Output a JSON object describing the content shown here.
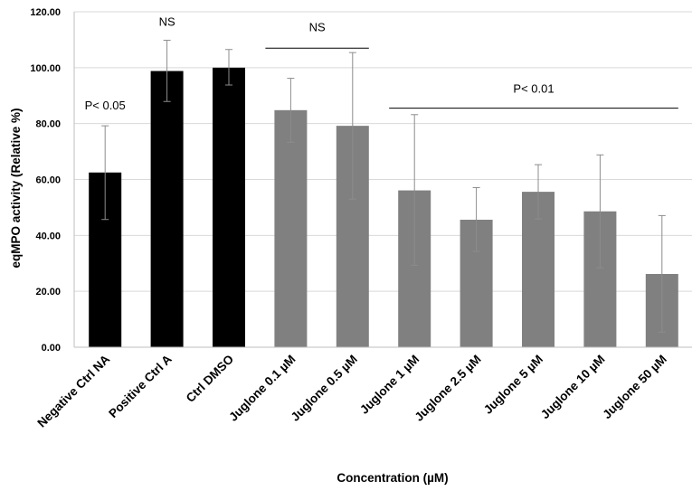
{
  "chart_data": {
    "type": "bar",
    "title": "",
    "xlabel": "Concentration  (µM)",
    "ylabel": "eqMPO activity  (Relative %)",
    "ylim": [
      0,
      120
    ],
    "yticks": [
      0,
      20,
      40,
      60,
      80,
      100,
      120
    ],
    "ytick_labels": [
      "0.00",
      "20.00",
      "40.00",
      "60.00",
      "80.00",
      "100.00",
      "120.00"
    ],
    "grid": true,
    "categories": [
      "Negative Ctrl NA",
      "Positive Ctrl A",
      "Ctrl DMSO",
      "Juglone 0.1 µM",
      "Juglone 0.5 µM",
      "Juglone 1 µM",
      "Juglone 2.5 µM",
      "Juglone 5 µM",
      "Juglone 10 µM",
      "Juglone 50 µM"
    ],
    "values": [
      62.5,
      98.8,
      100.0,
      84.8,
      79.2,
      56.1,
      45.6,
      55.6,
      48.6,
      26.2
    ],
    "error_upper": [
      79.2,
      109.8,
      106.5,
      96.2,
      105.4,
      83.2,
      57.1,
      65.3,
      68.8,
      47.1
    ],
    "error_lower": [
      45.7,
      87.9,
      93.8,
      73.3,
      53.0,
      29.3,
      34.3,
      45.9,
      28.4,
      5.4
    ],
    "bar_colors": [
      "#000000",
      "#000000",
      "#000000",
      "#808080",
      "#808080",
      "#808080",
      "#808080",
      "#808080",
      "#808080",
      "#808080"
    ],
    "annotations": [
      {
        "text": "P< 0.05",
        "category_index": 0,
        "y": 85
      },
      {
        "text": "NS",
        "category_index": 1,
        "y": 115
      },
      {
        "text": "NS",
        "bracket_from": 3,
        "bracket_to": 4,
        "y": 107,
        "label_y": 113
      },
      {
        "text": "P< 0.01",
        "bracket_from": 5,
        "bracket_to": 9,
        "y": 85.5,
        "label_y": 91
      }
    ]
  }
}
